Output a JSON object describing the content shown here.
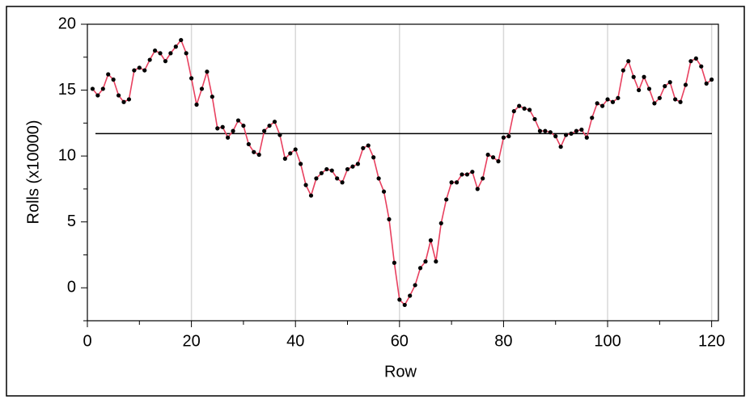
{
  "chart_data": {
    "type": "line",
    "xlabel": "Row",
    "ylabel": "Rolls (x10000)",
    "x": [
      1,
      2,
      3,
      4,
      5,
      6,
      7,
      8,
      9,
      10,
      11,
      12,
      13,
      14,
      15,
      16,
      17,
      18,
      19,
      20,
      21,
      22,
      23,
      24,
      25,
      26,
      27,
      28,
      29,
      30,
      31,
      32,
      33,
      34,
      35,
      36,
      37,
      38,
      39,
      40,
      41,
      42,
      43,
      44,
      45,
      46,
      47,
      48,
      49,
      50,
      51,
      52,
      53,
      54,
      55,
      56,
      57,
      58,
      59,
      60,
      61,
      62,
      63,
      64,
      65,
      66,
      67,
      68,
      69,
      70,
      71,
      72,
      73,
      74,
      75,
      76,
      77,
      78,
      79,
      80,
      81,
      82,
      83,
      84,
      85,
      86,
      87,
      88,
      89,
      90,
      91,
      92,
      93,
      94,
      95,
      96,
      97,
      98,
      99,
      100,
      101,
      102,
      103,
      104,
      105,
      106,
      107,
      108,
      109,
      110,
      111,
      112,
      113,
      114,
      115,
      116,
      117,
      118,
      119,
      120
    ],
    "series": [
      {
        "color": "#e8405f",
        "marker_color": "#000000",
        "values": [
          15.1,
          14.6,
          15.1,
          16.2,
          15.8,
          14.6,
          14.1,
          14.3,
          16.5,
          16.7,
          16.5,
          17.3,
          18.0,
          17.8,
          17.2,
          17.8,
          18.3,
          18.8,
          17.8,
          15.9,
          13.9,
          15.1,
          16.4,
          14.5,
          12.1,
          12.2,
          11.4,
          11.9,
          12.7,
          12.3,
          10.9,
          10.3,
          10.1,
          11.9,
          12.3,
          12.6,
          11.6,
          9.8,
          10.2,
          10.5,
          9.4,
          7.8,
          7.0,
          8.3,
          8.7,
          9.0,
          8.9,
          8.3,
          8.0,
          9.0,
          9.2,
          9.4,
          10.6,
          10.8,
          9.9,
          8.3,
          7.3,
          5.2,
          1.9,
          -0.9,
          -1.3,
          -0.6,
          0.2,
          1.5,
          2.0,
          3.6,
          2.0,
          4.9,
          6.7,
          8.0,
          8.0,
          8.6,
          8.6,
          8.8,
          7.5,
          8.3,
          10.1,
          9.9,
          9.6,
          11.4,
          11.5,
          13.4,
          13.8,
          13.6,
          13.5,
          12.8,
          11.9,
          11.9,
          11.8,
          11.5,
          10.7,
          11.6,
          11.7,
          11.9,
          12.0,
          11.4,
          12.9,
          14.0,
          13.8,
          14.3,
          14.1,
          14.4,
          16.5,
          17.2,
          16.0,
          15.0,
          16.0,
          15.1,
          14.0,
          14.4,
          15.3,
          15.6,
          14.3,
          14.1,
          15.4,
          17.2,
          17.4,
          16.8,
          15.5,
          15.8
        ]
      }
    ],
    "hline": 11.7,
    "xlim": [
      0,
      121.3
    ],
    "ylim": [
      -2.5,
      20
    ],
    "xticks": [
      0,
      20,
      40,
      60,
      80,
      100,
      120
    ],
    "yticks": [
      0,
      5,
      10,
      15,
      20
    ],
    "xminorticks": [
      10,
      30,
      50,
      70,
      90,
      110
    ],
    "yminorticks": [
      -2.5,
      2.5,
      7.5,
      12.5,
      17.5
    ],
    "grid_x": true
  }
}
